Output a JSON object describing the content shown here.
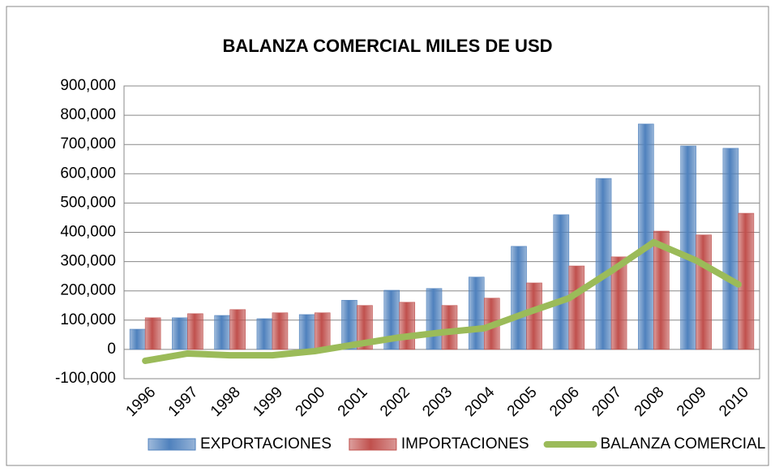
{
  "chart_data": {
    "type": "bar",
    "title": "BALANZA COMERCIAL  MILES DE USD",
    "categories": [
      "1996",
      "1997",
      "1998",
      "1999",
      "2000",
      "2001",
      "2002",
      "2003",
      "2004",
      "2005",
      "2006",
      "2007",
      "2008",
      "2009",
      "2010"
    ],
    "series": [
      {
        "name": "EXPORTACIONES",
        "color": "#4f81bd",
        "type": "bar",
        "values": [
          69000,
          108000,
          116000,
          105000,
          119000,
          168000,
          202000,
          208000,
          247000,
          352000,
          460000,
          584000,
          770000,
          695000,
          687000
        ]
      },
      {
        "name": "IMPORTACIONES",
        "color": "#c0504d",
        "type": "bar",
        "values": [
          108000,
          122000,
          136000,
          125000,
          125000,
          150000,
          161000,
          150000,
          175000,
          227000,
          285000,
          316000,
          404000,
          391000,
          465000
        ]
      },
      {
        "name": "BALANZA COMERCIAL",
        "color": "#9bbb59",
        "type": "line",
        "values": [
          -39000,
          -14000,
          -20000,
          -20000,
          -6000,
          18000,
          41000,
          58000,
          72000,
          125000,
          175000,
          268000,
          366000,
          304000,
          222000
        ]
      }
    ],
    "ylim": [
      -100000,
      900000
    ],
    "yticks": [
      {
        "value": -100000,
        "label": "-100,000"
      },
      0,
      {
        "value": 100000,
        "label": "100,000"
      },
      {
        "value": 200000,
        "label": "200,000"
      },
      {
        "value": 300000,
        "label": "300,000"
      },
      {
        "value": 400000,
        "label": "400,000"
      },
      {
        "value": 500000,
        "label": "500,000"
      },
      {
        "value": 600000,
        "label": "600,000"
      },
      {
        "value": 700000,
        "label": "700,000"
      },
      {
        "value": 800000,
        "label": "800,000"
      },
      {
        "value": 900000,
        "label": "900,000"
      }
    ],
    "grid": true,
    "legend": "bottom"
  }
}
